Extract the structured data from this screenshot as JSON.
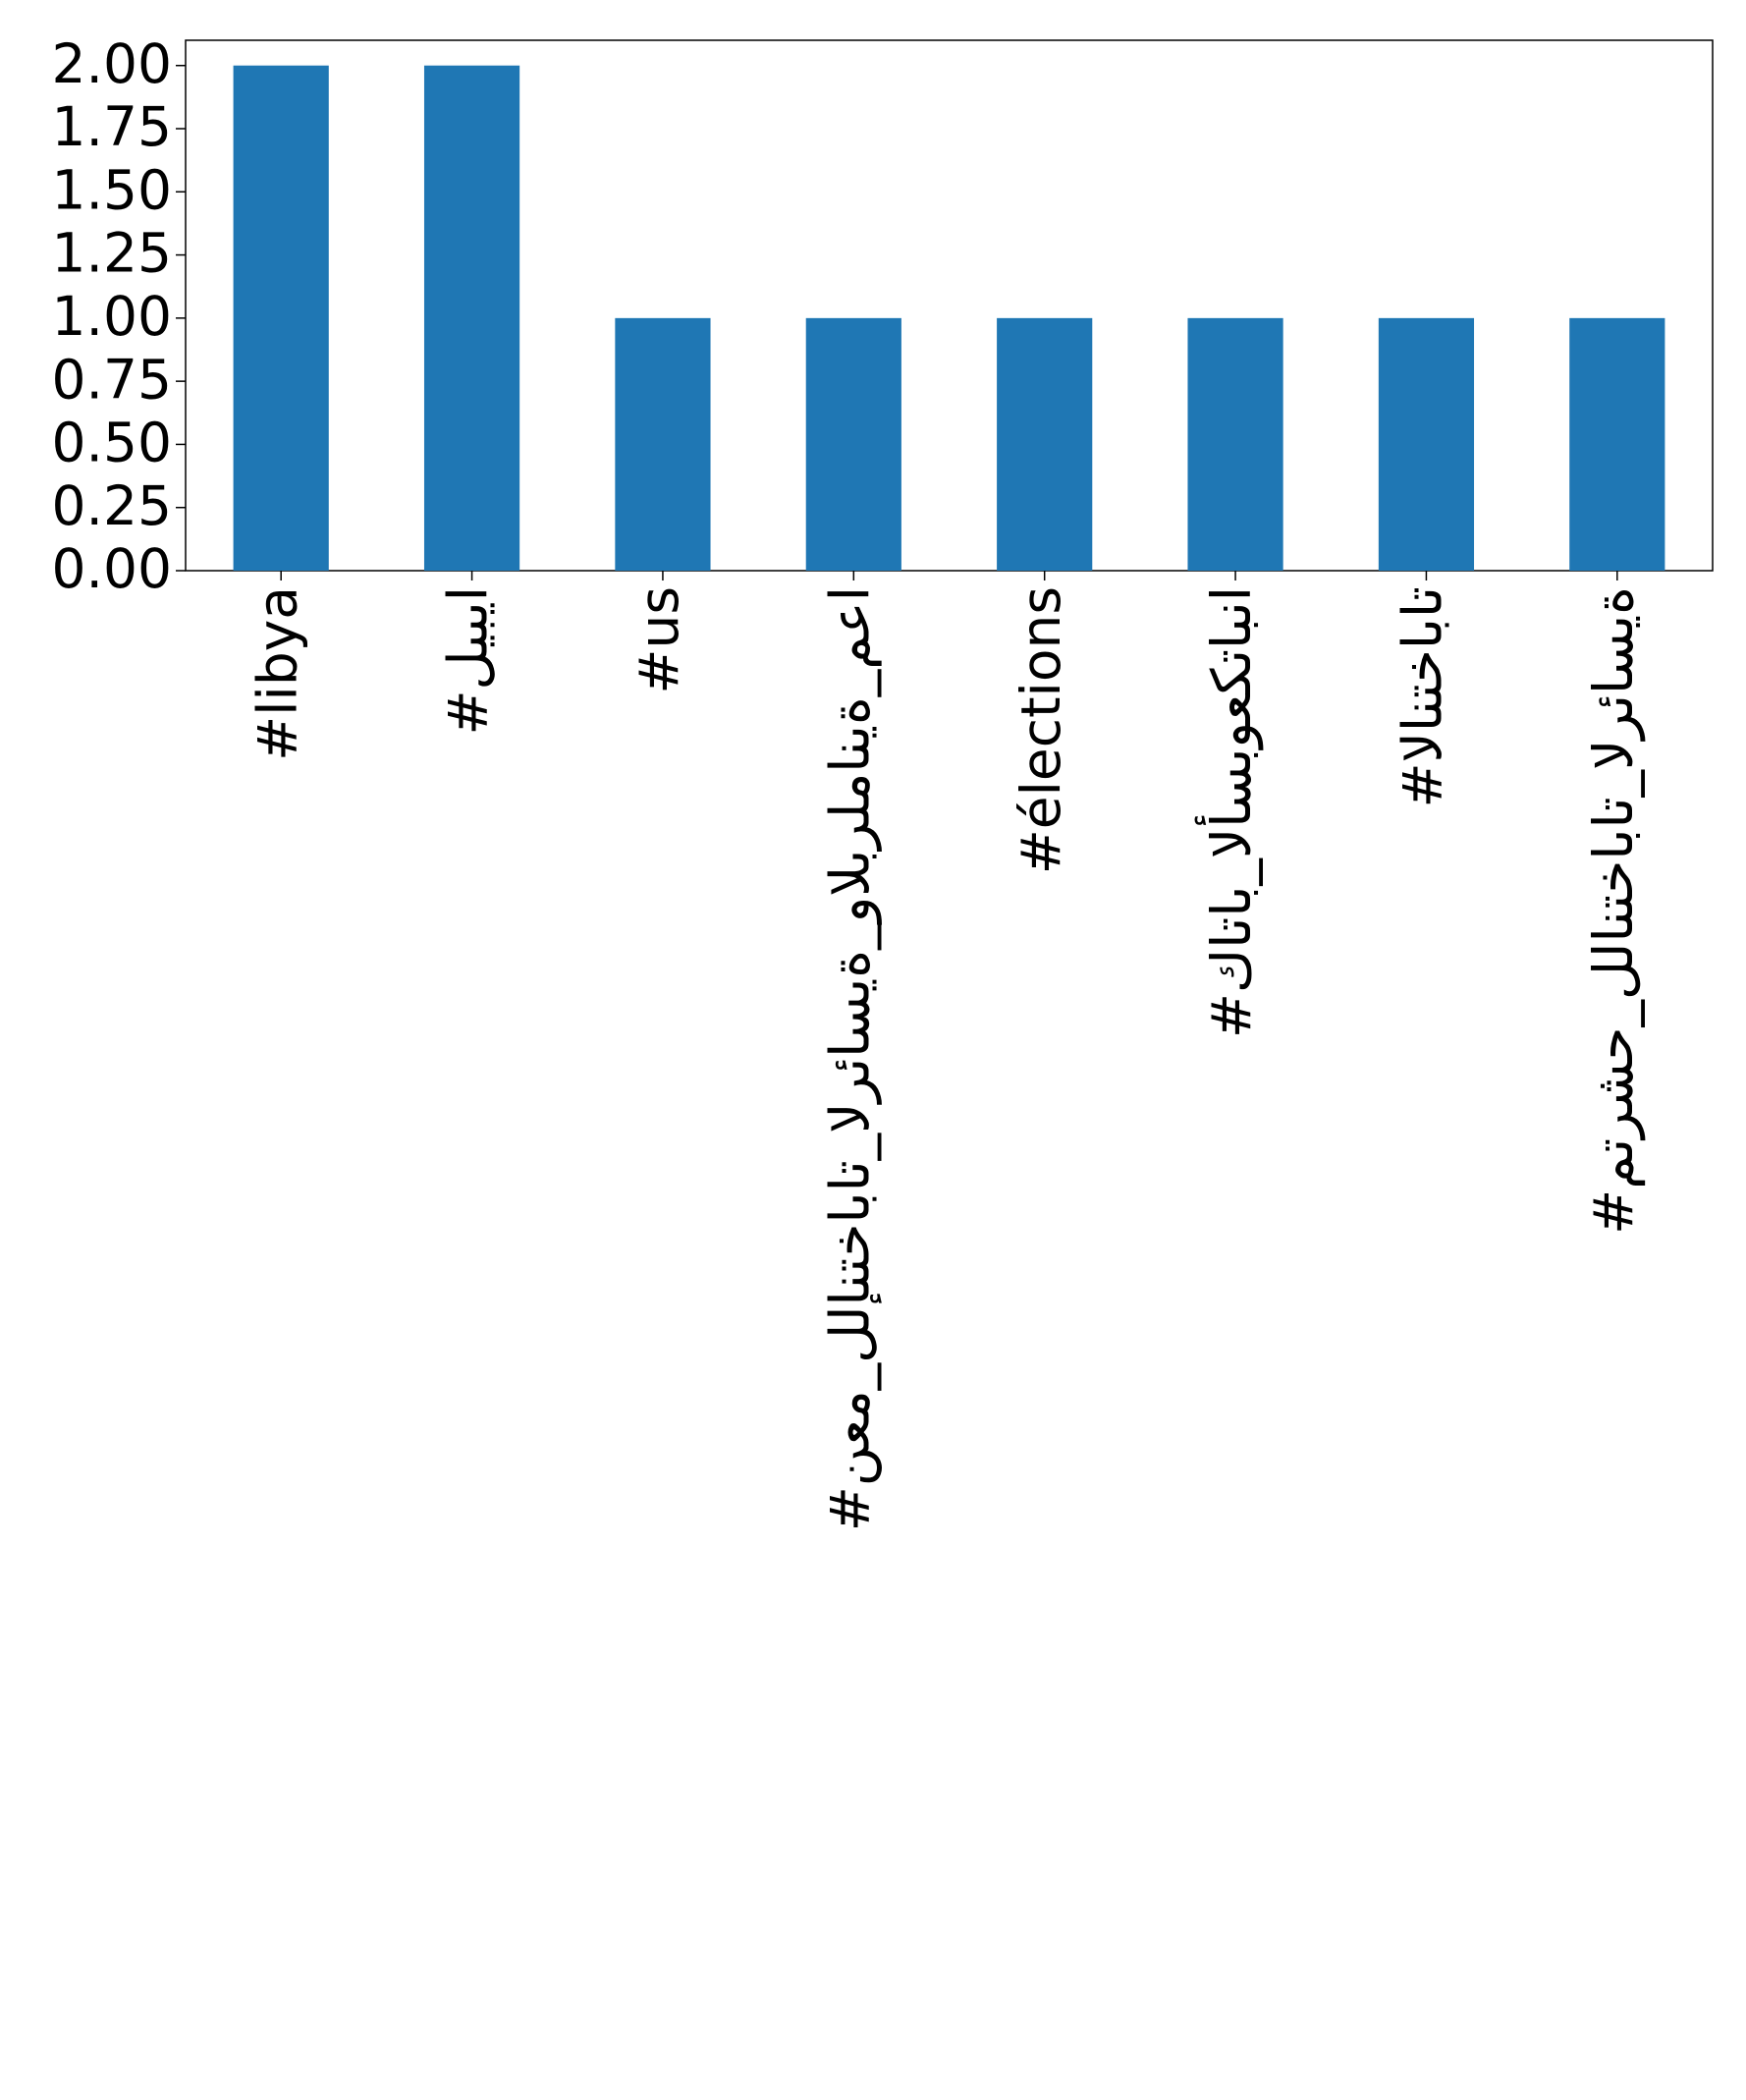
{
  "chart_data": {
    "type": "bar",
    "categories": [
      "#libya",
      "#ليبيا",
      "#us",
      "#نعم_للإنتخابات_الرئاسية_والبرلمانية_معا",
      "#élections",
      "#كاتاب_الأسبوعكتابنا",
      "#الانتخابات",
      "#مترشح_للانتخابات_الرئاسية"
    ],
    "values": [
      2,
      2,
      1,
      1,
      1,
      1,
      1,
      1
    ],
    "color": "#1f77b4",
    "ylim": [
      0,
      2.1
    ],
    "yticks": [
      {
        "value": 0,
        "label": "0.00"
      },
      {
        "value": 0.25,
        "label": "0.25"
      },
      {
        "value": 0.5,
        "label": "0.50"
      },
      {
        "value": 0.75,
        "label": "0.75"
      },
      {
        "value": 1,
        "label": "1.00"
      },
      {
        "value": 1.25,
        "label": "1.25"
      },
      {
        "value": 1.5,
        "label": "1.50"
      },
      {
        "value": 1.75,
        "label": "1.75"
      },
      {
        "value": 2,
        "label": "2.00"
      }
    ],
    "grid": false
  }
}
